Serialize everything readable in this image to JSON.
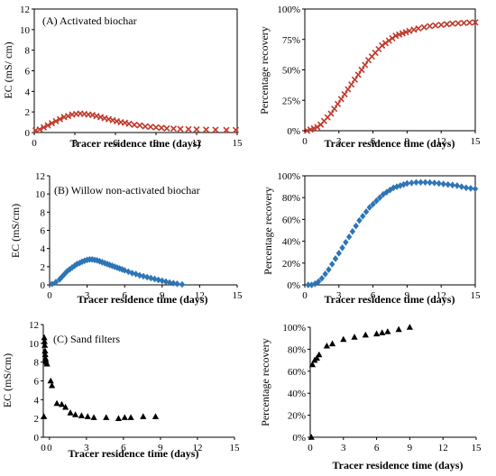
{
  "chart_data": [
    {
      "id": "A-left",
      "type": "scatter",
      "panel_label": "(A) Activated biochar",
      "xlabel": "Tracer residence time (days)",
      "ylabel": "EC (mS/ cm)",
      "xlim": [
        0,
        15
      ],
      "ylim": [
        0,
        12
      ],
      "xticks": [
        0,
        3,
        6,
        9,
        12,
        15
      ],
      "yticks": [
        0,
        2,
        4,
        6,
        8,
        10,
        12
      ],
      "ytick_format": "plain",
      "framed": true,
      "marker": "x",
      "color": "#c0392b",
      "series": [
        {
          "x": [
            0.1,
            0.4,
            0.7,
            1.0,
            1.3,
            1.6,
            1.9,
            2.2,
            2.5,
            2.8,
            3.1,
            3.4,
            3.7,
            4.0,
            4.3,
            4.6,
            4.9,
            5.2,
            5.5,
            5.8,
            6.1,
            6.4,
            6.7,
            7.0,
            7.4,
            7.8,
            8.2,
            8.6,
            9.0,
            9.4,
            9.8,
            10.3,
            10.8,
            11.4,
            12.0,
            12.7,
            13.4,
            14.2,
            14.9
          ],
          "y": [
            0.2,
            0.3,
            0.5,
            0.7,
            0.9,
            1.1,
            1.3,
            1.5,
            1.6,
            1.75,
            1.8,
            1.85,
            1.8,
            1.75,
            1.7,
            1.6,
            1.5,
            1.4,
            1.3,
            1.2,
            1.1,
            1.0,
            0.95,
            0.85,
            0.75,
            0.7,
            0.6,
            0.55,
            0.5,
            0.45,
            0.4,
            0.38,
            0.35,
            0.32,
            0.3,
            0.28,
            0.27,
            0.25,
            0.25
          ]
        }
      ]
    },
    {
      "id": "A-right",
      "type": "scatter",
      "xlabel": "Tracer residence time (days)",
      "ylabel": "Percentage recovery",
      "xlim": [
        0,
        15
      ],
      "ylim": [
        0,
        100
      ],
      "xticks": [
        0,
        3,
        6,
        9,
        12,
        15
      ],
      "yticks": [
        0,
        25,
        50,
        75,
        100
      ],
      "ytick_format": "percent",
      "framed": true,
      "marker": "x",
      "color": "#c0392b",
      "series": [
        {
          "x": [
            0.2,
            0.5,
            0.8,
            1.1,
            1.4,
            1.7,
            2.0,
            2.3,
            2.6,
            2.9,
            3.2,
            3.5,
            3.8,
            4.1,
            4.4,
            4.7,
            5.0,
            5.3,
            5.6,
            5.9,
            6.2,
            6.5,
            6.8,
            7.1,
            7.4,
            7.7,
            8.0,
            8.3,
            8.6,
            8.9,
            9.2,
            9.6,
            10.0,
            10.5,
            11.0,
            11.5,
            12.0,
            12.5,
            13.0,
            13.5,
            14.0,
            14.5,
            15.0
          ],
          "y": [
            0,
            1,
            2,
            3,
            5,
            8,
            11,
            14,
            18,
            22,
            26,
            30,
            34,
            38,
            42,
            46,
            50,
            54,
            58,
            61,
            64,
            67,
            70,
            72,
            74,
            76,
            78,
            79,
            80,
            81,
            82,
            83,
            84,
            85,
            86,
            86.5,
            87,
            87.5,
            88,
            88.3,
            88.6,
            88.8,
            89
          ]
        }
      ]
    },
    {
      "id": "B-left",
      "type": "scatter",
      "panel_label": "(B) Willow non-activated biochar",
      "xlabel": "Tracer residence time (days)",
      "ylabel": "EC (mS/cm)",
      "xlim": [
        0,
        15
      ],
      "ylim": [
        0,
        12
      ],
      "xticks": [
        0,
        3,
        6,
        9,
        12,
        15
      ],
      "yticks": [
        0,
        2,
        4,
        6,
        8,
        10,
        12
      ],
      "ytick_format": "plain",
      "framed": false,
      "marker": "diamond",
      "color": "#2e75b6",
      "series": [
        {
          "x": [
            0.2,
            0.5,
            0.8,
            1.0,
            1.2,
            1.4,
            1.6,
            1.8,
            2.0,
            2.2,
            2.4,
            2.6,
            2.8,
            3.0,
            3.2,
            3.4,
            3.6,
            3.8,
            4.0,
            4.2,
            4.4,
            4.6,
            4.8,
            5.0,
            5.2,
            5.4,
            5.6,
            5.8,
            6.0,
            6.3,
            6.6,
            6.9,
            7.2,
            7.5,
            7.8,
            8.1,
            8.4,
            8.7,
            9.0,
            9.3,
            9.6,
            9.9,
            10.2,
            10.6
          ],
          "y": [
            0.1,
            0.3,
            0.6,
            0.9,
            1.2,
            1.5,
            1.7,
            1.9,
            2.1,
            2.3,
            2.4,
            2.55,
            2.65,
            2.75,
            2.8,
            2.8,
            2.75,
            2.7,
            2.6,
            2.5,
            2.4,
            2.3,
            2.2,
            2.1,
            2.0,
            1.9,
            1.8,
            1.7,
            1.6,
            1.45,
            1.3,
            1.2,
            1.05,
            0.95,
            0.85,
            0.75,
            0.65,
            0.55,
            0.45,
            0.35,
            0.25,
            0.18,
            0.12,
            0.05
          ]
        }
      ]
    },
    {
      "id": "B-right",
      "type": "scatter",
      "xlabel": "Tracer residence time (days)",
      "ylabel": "Percentage recovery",
      "xlim": [
        0,
        15
      ],
      "ylim": [
        0,
        100
      ],
      "xticks": [
        0,
        3,
        6,
        9,
        12,
        15
      ],
      "yticks": [
        0,
        20,
        40,
        60,
        80,
        100
      ],
      "ytick_format": "percent",
      "framed": true,
      "marker": "diamond",
      "color": "#2e75b6",
      "series": [
        {
          "x": [
            0.3,
            0.6,
            0.9,
            1.2,
            1.5,
            1.8,
            2.1,
            2.4,
            2.7,
            3.0,
            3.3,
            3.6,
            3.9,
            4.2,
            4.5,
            4.8,
            5.1,
            5.4,
            5.7,
            6.0,
            6.3,
            6.6,
            6.9,
            7.2,
            7.5,
            7.8,
            8.1,
            8.4,
            8.7,
            9.0,
            9.4,
            9.8,
            10.2,
            10.6,
            11.0,
            11.4,
            11.8,
            12.2,
            12.6,
            13.0,
            13.4,
            13.8,
            14.2,
            14.6,
            15.0
          ],
          "y": [
            0,
            0,
            1,
            3,
            6,
            10,
            14,
            19,
            24,
            29,
            34,
            39,
            44,
            49,
            54,
            59,
            63,
            67,
            71,
            74,
            77,
            80,
            83,
            85,
            87,
            89,
            90,
            91,
            92,
            93,
            93.5,
            94,
            94,
            94,
            93.8,
            93.5,
            93,
            92.5,
            92,
            91.5,
            91,
            90,
            89,
            88.5,
            88
          ]
        }
      ]
    },
    {
      "id": "C-left",
      "type": "scatter",
      "panel_label": "(C) Sand filters",
      "xlabel": "Tracer residence time (days)",
      "ylabel": "EC (mS/cm)",
      "xlim": [
        -0.5,
        15
      ],
      "ylim": [
        0,
        12
      ],
      "xticks": [
        0,
        3,
        6,
        9,
        12,
        15
      ],
      "xtick_labels": [
        "0",
        "3",
        "6",
        "9",
        "12",
        "15"
      ],
      "extra_xtick": {
        "value": -0.5,
        "label": "0"
      },
      "yticks": [
        0,
        2,
        4,
        6,
        8,
        10,
        12
      ],
      "ytick_format": "plain",
      "framed": false,
      "marker": "triangle",
      "color": "#000000",
      "series": [
        {
          "x": [
            -0.45,
            -0.42,
            -0.4,
            -0.38,
            -0.36,
            -0.34,
            -0.32,
            -0.3,
            -0.28,
            -0.2,
            0.1,
            0.2,
            0.6,
            1.0,
            1.3,
            1.7,
            2.1,
            2.6,
            3.1,
            3.6,
            4.6,
            5.6,
            6.1,
            6.6,
            7.6,
            8.6
          ],
          "y": [
            2.2,
            10.6,
            10.2,
            9.8,
            9.2,
            8.8,
            8.4,
            8.2,
            8.0,
            7.8,
            6.0,
            5.5,
            3.6,
            3.5,
            3.2,
            2.6,
            2.4,
            2.3,
            2.2,
            2.1,
            2.1,
            2.0,
            2.1,
            2.1,
            2.2,
            2.2
          ]
        }
      ]
    },
    {
      "id": "C-right",
      "type": "scatter",
      "xlabel": "Tracer residence time (days)",
      "ylabel": "Percentage recovery",
      "xlim": [
        0,
        15
      ],
      "ylim": [
        0,
        100
      ],
      "xticks": [
        0,
        3,
        6,
        9,
        12,
        15
      ],
      "yticks": [
        0,
        20,
        40,
        60,
        80,
        100
      ],
      "ytick_format": "percent",
      "framed": false,
      "marker": "triangle",
      "color": "#000000",
      "series": [
        {
          "x": [
            0.1,
            0.2,
            0.4,
            0.6,
            0.8,
            1.5,
            2.0,
            3.0,
            4.0,
            5.0,
            6.0,
            6.5,
            7.0,
            8.0,
            9.0
          ],
          "y": [
            0,
            66,
            70,
            72,
            75,
            83,
            85,
            89,
            91,
            93,
            94,
            95,
            96,
            98,
            100
          ]
        }
      ]
    }
  ]
}
